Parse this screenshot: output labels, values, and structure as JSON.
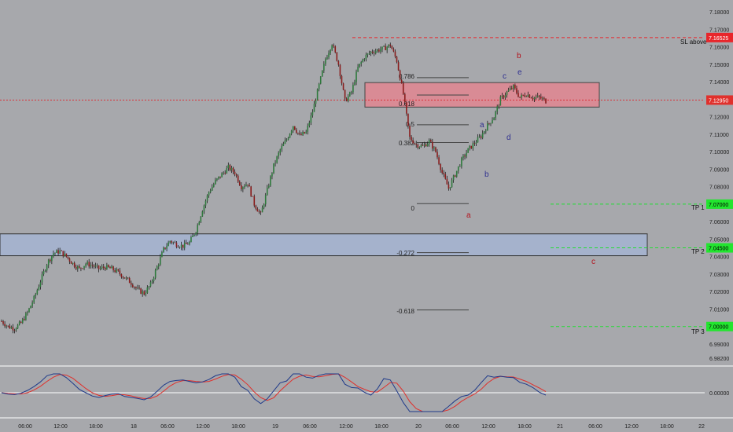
{
  "chart_data": {
    "type": "candlestick",
    "symbol_note": "",
    "x_axis_ticks": [
      "06:00",
      "12:00",
      "18:00",
      "18",
      "06:00",
      "12:00",
      "18:00",
      "19",
      "06:00",
      "12:00",
      "18:00",
      "20",
      "06:00",
      "12:00",
      "18:00",
      "21",
      "06:00",
      "12:00",
      "18:00",
      "22"
    ],
    "y_axis_ticks": [
      "7.18000",
      "7.17000",
      "7.16000",
      "7.15000",
      "7.14000",
      "7.13000",
      "7.12000",
      "7.11000",
      "7.10000",
      "7.09000",
      "7.08000",
      "7.07000",
      "7.06000",
      "7.05000",
      "7.04000",
      "7.03000",
      "7.02000",
      "7.01000",
      "7.00000",
      "6.99000",
      "6.98200"
    ],
    "price_range": [
      6.982,
      7.185
    ],
    "oscillator_ticks": [
      "0.00000"
    ],
    "close_series": [
      7.003,
      7.0,
      6.999,
      7.002,
      7.008,
      7.016,
      7.026,
      7.036,
      7.042,
      7.043,
      7.04,
      7.036,
      7.033,
      7.036,
      7.035,
      7.033,
      7.034,
      7.033,
      7.031,
      7.028,
      7.025,
      7.021,
      7.019,
      7.024,
      7.034,
      7.044,
      7.049,
      7.047,
      7.046,
      7.048,
      7.055,
      7.067,
      7.077,
      7.083,
      7.087,
      7.091,
      7.088,
      7.08,
      7.082,
      7.07,
      7.064,
      7.078,
      7.092,
      7.101,
      7.107,
      7.115,
      7.109,
      7.111,
      7.123,
      7.138,
      7.153,
      7.162,
      7.15,
      7.129,
      7.134,
      7.148,
      7.154,
      7.157,
      7.158,
      7.159,
      7.161,
      7.152,
      7.133,
      7.108,
      7.104,
      7.103,
      7.106,
      7.1,
      7.088,
      7.079,
      7.087,
      7.095,
      7.101,
      7.105,
      7.109,
      7.115,
      7.12,
      7.13,
      7.134,
      7.137,
      7.131,
      7.133,
      7.131,
      7.131,
      7.129
    ],
    "levels": {
      "sl": {
        "label": "SL above",
        "price_label": "7.16525",
        "value": 7.16525
      },
      "current": {
        "price_label": "7.12950",
        "value": 7.1295
      },
      "tp1": {
        "label": "TP 1",
        "price_label": "7.07000",
        "value": 7.07
      },
      "tp2": {
        "label": "TP 2",
        "price_label": "7.04500",
        "value": 7.045
      },
      "tp3": {
        "label": "TP 3",
        "price_label": "7.00000",
        "value": 7.0
      }
    },
    "fib_levels": [
      {
        "label": "0.786",
        "value": 7.1423
      },
      {
        "label": "0.618",
        "value": 7.1324
      },
      {
        "label": "0.5",
        "value": 7.1154
      },
      {
        "label": "0.382",
        "value": 7.1052
      },
      {
        "label": "0",
        "value": 7.0703
      },
      {
        "label": "-0.272",
        "value": 7.0423
      },
      {
        "label": "-0.618",
        "value": 7.0095
      }
    ],
    "zones": [
      {
        "name": "resistance-zone",
        "price_top": 7.1395,
        "price_bottom": 7.1255,
        "color": "#d98b95"
      },
      {
        "name": "support-zone",
        "price_top": 7.053,
        "price_bottom": 7.0405,
        "color": "#a5b2cc"
      }
    ],
    "wave_labels": [
      {
        "text": "b",
        "color": "#b3121c"
      },
      {
        "text": "e",
        "color": "#2e2f8f"
      },
      {
        "text": "c",
        "color": "#2e2f8f"
      },
      {
        "text": "a",
        "color": "#2e2f8f"
      },
      {
        "text": "d",
        "color": "#2e2f8f"
      },
      {
        "text": "b",
        "color": "#2e2f8f"
      },
      {
        "text": "a",
        "color": "#b3121c"
      },
      {
        "text": "c",
        "color": "#b3121c"
      }
    ],
    "colors": {
      "background": "#a7a8ac",
      "bull": "#2f7a3d",
      "bear": "#8a1d1d",
      "sl_line": "#e8262b",
      "tp_line": "#22dd33",
      "fib": "#444444",
      "osc_blue": "#1f3a8a",
      "osc_red": "#e0302c"
    }
  }
}
